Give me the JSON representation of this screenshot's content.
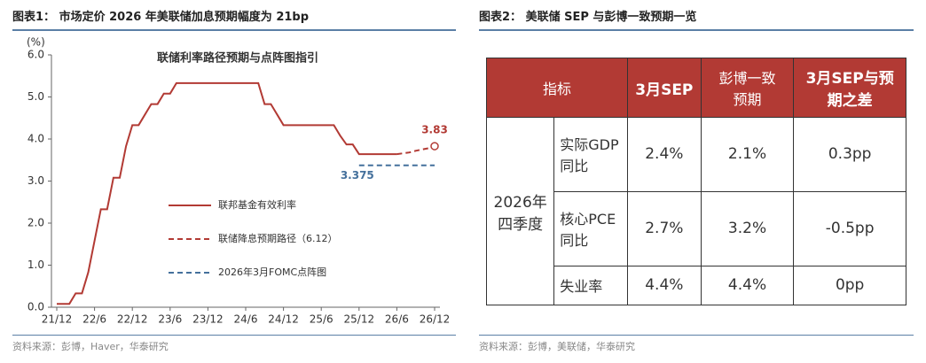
{
  "left": {
    "header": "图表1：  市场定价 2026 年美联储加息预期幅度为 21bp",
    "source": "资料来源：彭博，Haver，华泰研究"
  },
  "chart_data": {
    "type": "line",
    "title": "联储利率路径预期与点阵图指引",
    "y_unit": "(%)",
    "categories": [
      "21/12",
      null,
      null,
      null,
      null,
      null,
      "22/6",
      null,
      null,
      null,
      null,
      null,
      "22/12",
      null,
      null,
      null,
      null,
      null,
      "23/6",
      null,
      null,
      null,
      null,
      null,
      "23/12",
      null,
      null,
      null,
      null,
      null,
      "24/6",
      null,
      null,
      null,
      null,
      null,
      "24/12",
      null,
      null,
      null,
      null,
      null,
      "25/6",
      null,
      null,
      null,
      null,
      null,
      "25/12",
      null,
      null,
      null,
      null,
      null,
      "26/6",
      null,
      null,
      null,
      null,
      null,
      "26/12"
    ],
    "series": [
      {
        "name": "联邦基金有效利率",
        "color": "#b23a34",
        "dash": false,
        "values": [
          0.08,
          0.08,
          0.08,
          0.33,
          0.33,
          0.83,
          1.58,
          2.33,
          2.33,
          3.08,
          3.08,
          3.83,
          4.33,
          4.33,
          4.58,
          4.83,
          4.83,
          5.08,
          5.08,
          5.33,
          5.33,
          5.33,
          5.33,
          5.33,
          5.33,
          5.33,
          5.33,
          5.33,
          5.33,
          5.33,
          5.33,
          5.33,
          5.33,
          4.83,
          4.83,
          4.58,
          4.33,
          4.33,
          4.33,
          4.33,
          4.33,
          4.33,
          4.33,
          4.33,
          4.33,
          4.08,
          3.87,
          3.87,
          3.64,
          3.64,
          3.64,
          3.64,
          3.64,
          3.64,
          3.64,
          null,
          null,
          null,
          null,
          null,
          null
        ]
      },
      {
        "name": "联储降息预期路径（6.12）",
        "color": "#b23a34",
        "dash": true,
        "values": [
          null,
          null,
          null,
          null,
          null,
          null,
          null,
          null,
          null,
          null,
          null,
          null,
          null,
          null,
          null,
          null,
          null,
          null,
          null,
          null,
          null,
          null,
          null,
          null,
          null,
          null,
          null,
          null,
          null,
          null,
          null,
          null,
          null,
          null,
          null,
          null,
          null,
          null,
          null,
          null,
          null,
          null,
          null,
          null,
          null,
          null,
          null,
          null,
          null,
          null,
          null,
          null,
          null,
          null,
          3.64,
          3.66,
          3.68,
          3.72,
          3.75,
          3.78,
          3.83
        ]
      },
      {
        "name": "2026年3月FOMC点阵图",
        "color": "#44709c",
        "dash": true,
        "values": [
          null,
          null,
          null,
          null,
          null,
          null,
          null,
          null,
          null,
          null,
          null,
          null,
          null,
          null,
          null,
          null,
          null,
          null,
          null,
          null,
          null,
          null,
          null,
          null,
          null,
          null,
          null,
          null,
          null,
          null,
          null,
          null,
          null,
          null,
          null,
          null,
          null,
          null,
          null,
          null,
          null,
          null,
          null,
          null,
          null,
          null,
          null,
          null,
          3.375,
          3.375,
          3.375,
          3.375,
          3.375,
          3.375,
          3.375,
          3.375,
          3.375,
          3.375,
          3.375,
          3.375,
          3.375
        ]
      }
    ],
    "ylim": [
      0,
      6
    ],
    "yticks": [
      {
        "value": 0,
        "label": "0.0"
      },
      {
        "value": 1,
        "label": "1.0"
      },
      {
        "value": 2,
        "label": "2.0"
      },
      {
        "value": 3,
        "label": "3.0"
      },
      {
        "value": 4,
        "label": "4.0"
      },
      {
        "value": 5,
        "label": "5.0"
      },
      {
        "value": 6,
        "label": "6.0"
      }
    ],
    "legend": "center-right"
  },
  "right": {
    "header": "图表2：  美联储 SEP 与彭博一致预期一览",
    "source": "资料来源：彭博，美联储，华泰研究"
  },
  "table": {
    "header": [
      "指标",
      "3月SEP",
      "彭博一致预期",
      "3月SEP与预期之差"
    ],
    "group": "2026年四季度",
    "rows": [
      [
        "实际GDP同比",
        "2.4%",
        "2.1%",
        "0.3pp"
      ],
      [
        "核心PCE同比",
        "2.7%",
        "3.2%",
        "-0.5pp"
      ],
      [
        "失业率",
        "4.4%",
        "4.4%",
        "0pp"
      ]
    ]
  }
}
